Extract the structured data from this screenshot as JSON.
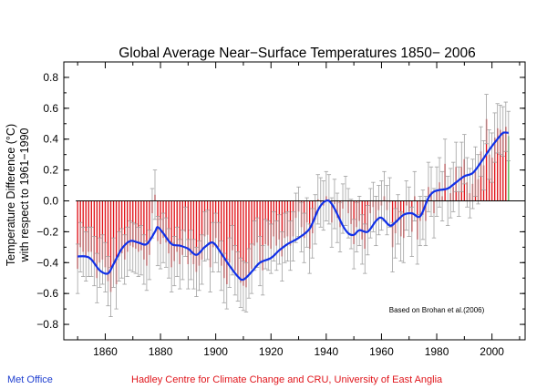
{
  "footer": {
    "left": "Met Office",
    "center": "Hadley Centre for Climate Change and CRU, University of East Anglia"
  },
  "colors": {
    "bar_negative": "#e0151b",
    "bar_positive": "#e0151b",
    "bar_last": "#4cb04c",
    "error_bar": "#a0a0a0",
    "smooth_line": "#1030e8",
    "zero_line": "#000000",
    "footer_left": "#1f3fd0",
    "footer_center": "#e0151b"
  },
  "chart_data": {
    "type": "bar",
    "title": "Global Average Near−Surface Temperatures 1850− 2006",
    "ylabel_line1": "Temperature Difference (°C)",
    "ylabel_line2": "with respect to 1961−1990",
    "xlabel": "",
    "annotation": "Based on Brohan et al.(2006)",
    "xlim": [
      1845,
      2012
    ],
    "ylim": [
      -0.9,
      0.9
    ],
    "xticks": [
      {
        "value": 1860,
        "label": "1860"
      },
      {
        "value": 1880,
        "label": "1880"
      },
      {
        "value": 1900,
        "label": "1900"
      },
      {
        "value": 1920,
        "label": "1920"
      },
      {
        "value": 1940,
        "label": "1940"
      },
      {
        "value": 1960,
        "label": "1960"
      },
      {
        "value": 1980,
        "label": "1980"
      },
      {
        "value": 2000,
        "label": "2000"
      }
    ],
    "yticks": [
      {
        "value": -0.8,
        "label": "−0.8"
      },
      {
        "value": -0.6,
        "label": "−0.6"
      },
      {
        "value": -0.4,
        "label": "−0.4"
      },
      {
        "value": -0.2,
        "label": "−0.2"
      },
      {
        "value": 0.0,
        "label": "0.0"
      },
      {
        "value": 0.2,
        "label": "0.2"
      },
      {
        "value": 0.4,
        "label": "0.4"
      },
      {
        "value": 0.6,
        "label": "0.6"
      },
      {
        "value": 0.8,
        "label": "0.8"
      }
    ],
    "annual": {
      "start_year": 1850,
      "values": [
        -0.44,
        -0.3,
        -0.33,
        -0.36,
        -0.33,
        -0.33,
        -0.39,
        -0.5,
        -0.4,
        -0.38,
        -0.43,
        -0.52,
        -0.59,
        -0.4,
        -0.54,
        -0.36,
        -0.34,
        -0.38,
        -0.33,
        -0.29,
        -0.3,
        -0.31,
        -0.33,
        -0.32,
        -0.38,
        -0.42,
        -0.35,
        -0.08,
        0.04,
        -0.26,
        -0.28,
        -0.24,
        -0.27,
        -0.34,
        -0.43,
        -0.39,
        -0.33,
        -0.41,
        -0.35,
        -0.2,
        -0.41,
        -0.35,
        -0.41,
        -0.46,
        -0.42,
        -0.38,
        -0.23,
        -0.22,
        -0.43,
        -0.3,
        -0.24,
        -0.3,
        -0.42,
        -0.5,
        -0.54,
        -0.4,
        -0.32,
        -0.45,
        -0.49,
        -0.53,
        -0.55,
        -0.56,
        -0.47,
        -0.44,
        -0.29,
        -0.27,
        -0.39,
        -0.45,
        -0.28,
        -0.29,
        -0.31,
        -0.23,
        -0.29,
        -0.25,
        -0.36,
        -0.24,
        -0.23,
        -0.29,
        -0.23,
        -0.11,
        -0.07,
        -0.17,
        -0.24,
        -0.14,
        -0.31,
        -0.21,
        -0.12,
        0.01,
        -0.01,
        -0.03,
        0.03,
        0.01,
        -0.14,
        -0.02,
        -0.11,
        -0.17,
        -0.05,
        0.0,
        -0.08,
        -0.15,
        -0.28,
        -0.17,
        -0.13,
        -0.25,
        -0.31,
        -0.19,
        -0.08,
        -0.04,
        -0.13,
        -0.06,
        -0.03,
        0.03,
        -0.06,
        -0.01,
        -0.3,
        -0.21,
        -0.12,
        -0.23,
        -0.24,
        -0.03,
        -0.07,
        -0.2,
        0.03,
        -0.25,
        -0.13,
        -0.09,
        -0.13,
        0.09,
        0.06,
        -0.08,
        0.06,
        0.12,
        0.03,
        0.24,
        0.0,
        0.05,
        0.09,
        0.22,
        0.06,
        0.22,
        0.27,
        0.12,
        0.05,
        0.11,
        0.19,
        0.14,
        0.32,
        0.23,
        0.53,
        0.3,
        0.28,
        0.41,
        0.47,
        0.46,
        0.45,
        0.48,
        0.42
      ]
    },
    "uncertainty": 0.16,
    "smooth_series": {
      "x": [
        1850,
        1853,
        1855,
        1858,
        1861,
        1863,
        1866,
        1869,
        1872,
        1875,
        1878,
        1879,
        1881,
        1884,
        1887,
        1890,
        1893,
        1896,
        1899,
        1902,
        1905,
        1908,
        1910,
        1913,
        1916,
        1920,
        1923,
        1926,
        1930,
        1934,
        1937,
        1939,
        1941,
        1943,
        1946,
        1948,
        1950,
        1952,
        1955,
        1958,
        1960,
        1963,
        1965,
        1968,
        1971,
        1974,
        1977,
        1979,
        1981,
        1984,
        1987,
        1990,
        1993,
        1996,
        1999,
        2002,
        2004,
        2006
      ],
      "y": [
        -0.36,
        -0.36,
        -0.38,
        -0.45,
        -0.47,
        -0.41,
        -0.31,
        -0.26,
        -0.27,
        -0.28,
        -0.2,
        -0.17,
        -0.21,
        -0.28,
        -0.29,
        -0.31,
        -0.35,
        -0.3,
        -0.27,
        -0.34,
        -0.42,
        -0.49,
        -0.51,
        -0.46,
        -0.4,
        -0.37,
        -0.32,
        -0.28,
        -0.24,
        -0.18,
        -0.06,
        -0.01,
        0.0,
        -0.05,
        -0.16,
        -0.21,
        -0.22,
        -0.19,
        -0.2,
        -0.13,
        -0.11,
        -0.16,
        -0.14,
        -0.09,
        -0.08,
        -0.1,
        0.02,
        0.06,
        0.07,
        0.08,
        0.12,
        0.16,
        0.18,
        0.25,
        0.33,
        0.4,
        0.44,
        0.44
      ]
    }
  }
}
